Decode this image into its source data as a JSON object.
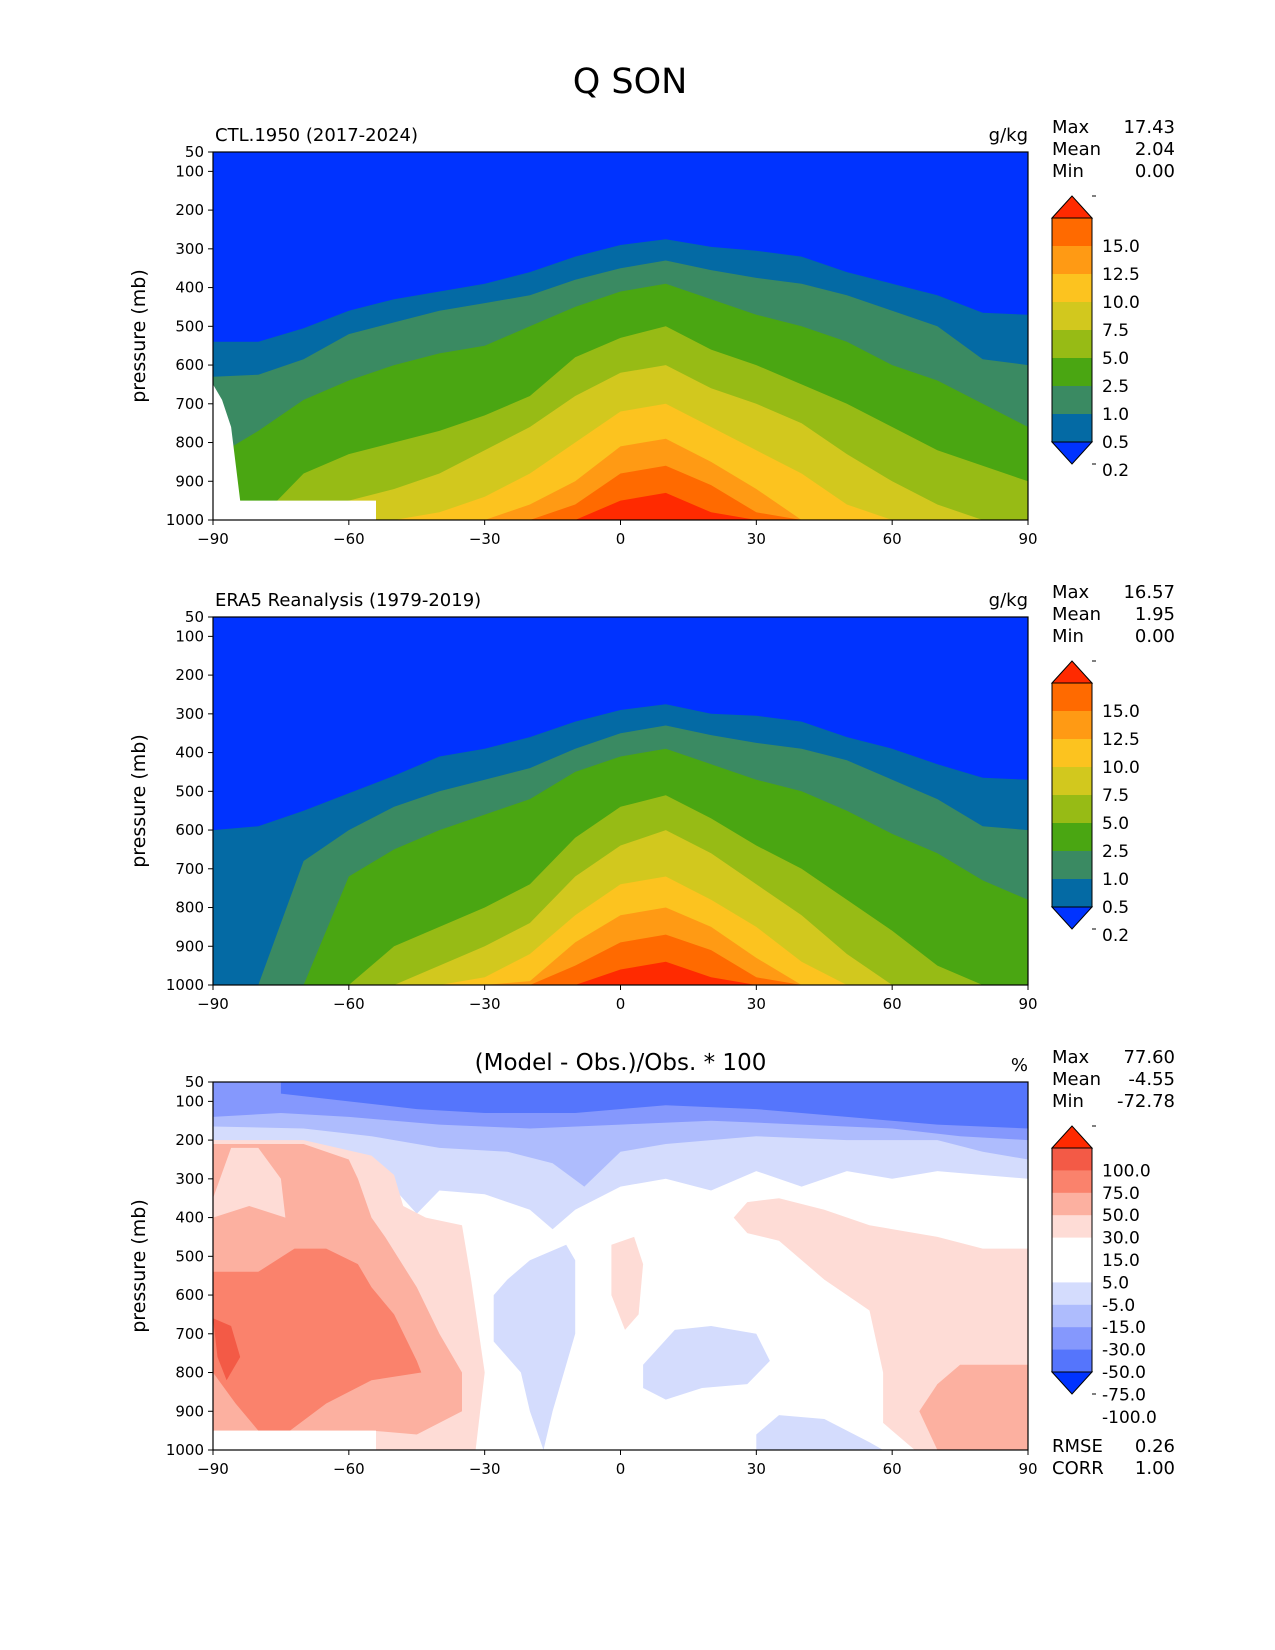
{
  "title": "Q SON",
  "chart_data": [
    {
      "type": "heatmap",
      "title": "CTL.1950 (2017-2024)",
      "units": "g/kg",
      "xlabel": "",
      "ylabel": "pressure (mb)",
      "xlim": [
        -90,
        90
      ],
      "ylim": [
        1000,
        50
      ],
      "xticks": [
        "−90",
        "−60",
        "−30",
        "0",
        "30",
        "60",
        "90"
      ],
      "yticks": [
        "50",
        "100",
        "200",
        "300",
        "400",
        "500",
        "600",
        "700",
        "800",
        "900",
        "1000"
      ],
      "stats": [
        {
          "label": "Max",
          "value": "17.43"
        },
        {
          "label": "Mean",
          "value": "2.04"
        },
        {
          "label": "Min",
          "value": "0.00"
        }
      ],
      "colorbar": {
        "levels": [
          "15.0",
          "12.5",
          "10.0",
          "7.5",
          "5.0",
          "2.5",
          "1.0",
          "0.5",
          "0.2"
        ],
        "colors": [
          "#ff2a00",
          "#ff6a00",
          "#ff9a14",
          "#fcc31f",
          "#d2c81e",
          "#97bb15",
          "#4aa612",
          "#3a8a62",
          "#046aa4",
          "#0033ff"
        ]
      }
    },
    {
      "type": "heatmap",
      "title": "ERA5 Reanalysis (1979-2019)",
      "units": "g/kg",
      "xlabel": "",
      "ylabel": "pressure (mb)",
      "xlim": [
        -90,
        90
      ],
      "ylim": [
        1000,
        50
      ],
      "xticks": [
        "−90",
        "−60",
        "−30",
        "0",
        "30",
        "60",
        "90"
      ],
      "yticks": [
        "50",
        "100",
        "200",
        "300",
        "400",
        "500",
        "600",
        "700",
        "800",
        "900",
        "1000"
      ],
      "stats": [
        {
          "label": "Max",
          "value": "16.57"
        },
        {
          "label": "Mean",
          "value": "1.95"
        },
        {
          "label": "Min",
          "value": "0.00"
        }
      ],
      "colorbar": {
        "levels": [
          "15.0",
          "12.5",
          "10.0",
          "7.5",
          "5.0",
          "2.5",
          "1.0",
          "0.5",
          "0.2"
        ],
        "colors": [
          "#ff2a00",
          "#ff6a00",
          "#ff9a14",
          "#fcc31f",
          "#d2c81e",
          "#97bb15",
          "#4aa612",
          "#3a8a62",
          "#046aa4",
          "#0033ff"
        ]
      }
    },
    {
      "type": "heatmap",
      "title": "(Model - Obs.)/Obs. * 100",
      "units": "%",
      "xlabel": "",
      "ylabel": "pressure (mb)",
      "xlim": [
        -90,
        90
      ],
      "ylim": [
        1000,
        50
      ],
      "xticks": [
        "−90",
        "−60",
        "−30",
        "0",
        "30",
        "60",
        "90"
      ],
      "yticks": [
        "50",
        "100",
        "200",
        "300",
        "400",
        "500",
        "600",
        "700",
        "800",
        "900",
        "1000"
      ],
      "stats": [
        {
          "label": "Max",
          "value": "77.60"
        },
        {
          "label": "Mean",
          "value": "-4.55"
        },
        {
          "label": "Min",
          "value": "-72.78"
        }
      ],
      "extra_stats": [
        {
          "label": "RMSE",
          "value": "0.26"
        },
        {
          "label": "CORR",
          "value": "1.00"
        }
      ],
      "colorbar": {
        "levels": [
          "100.0",
          "75.0",
          "50.0",
          "30.0",
          "15.0",
          "5.0",
          "-5.0",
          "-15.0",
          "-30.0",
          "-50.0",
          "-75.0",
          "-100.0"
        ],
        "colors": [
          "#ff2a00",
          "#f35a46",
          "#fa826c",
          "#fcb0a0",
          "#fedcd6",
          "#ffffff",
          "#ffffff",
          "#d4dcfd",
          "#aebcfd",
          "#8598fd",
          "#5575fc",
          "#0033ff"
        ]
      }
    }
  ]
}
